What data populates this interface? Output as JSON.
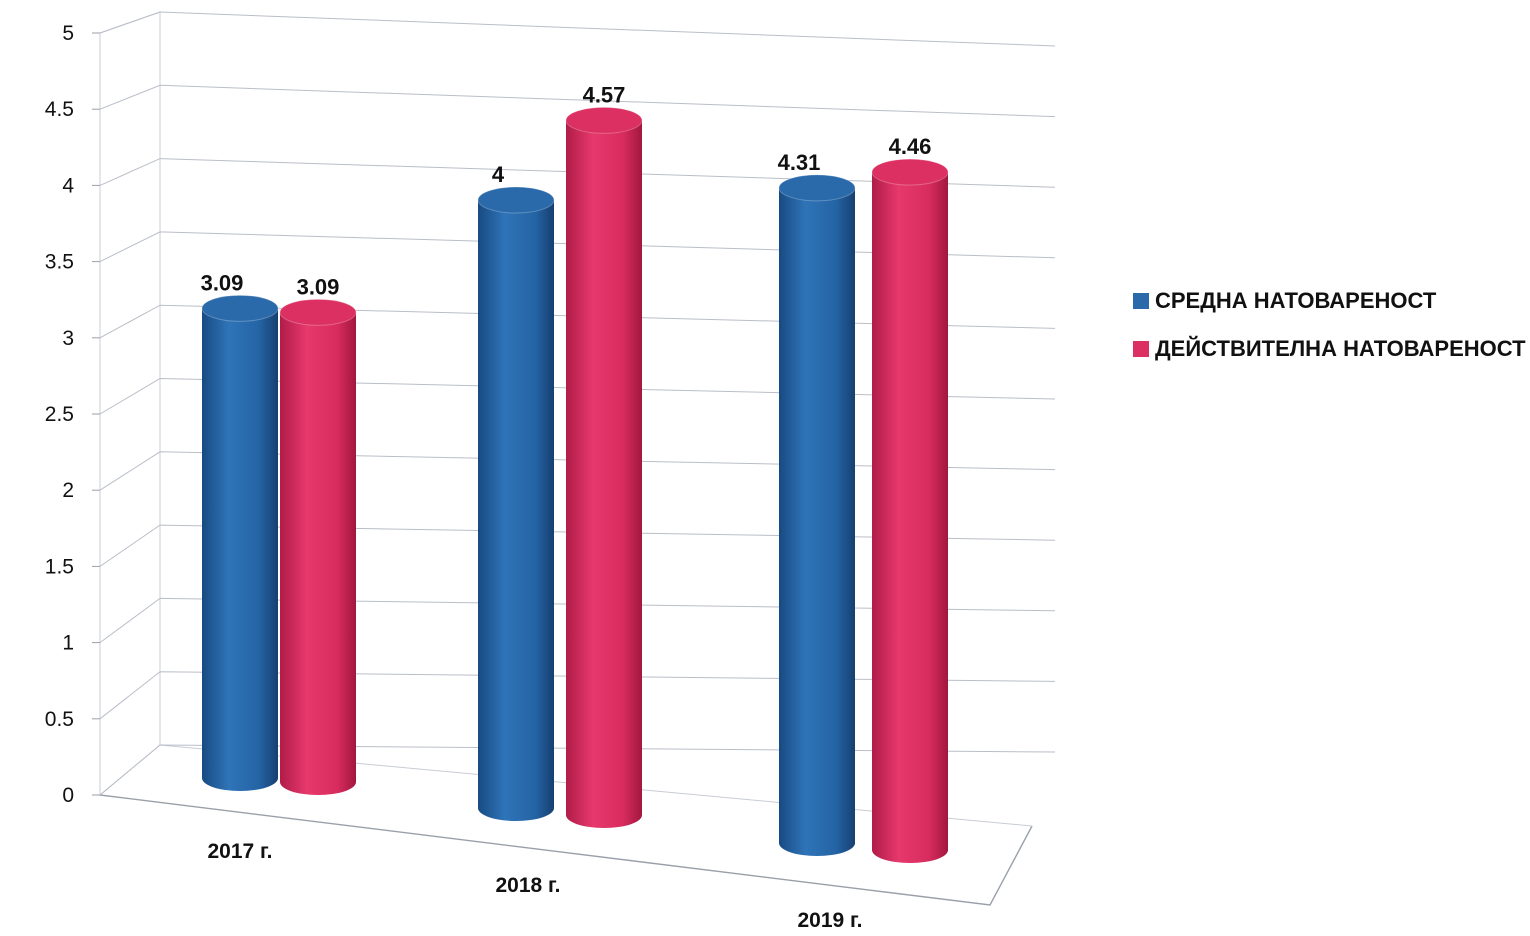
{
  "chart_data": {
    "type": "bar",
    "style": "3d-cylinder",
    "categories": [
      "2017 г.",
      "2018 г.",
      "2019 г."
    ],
    "series": [
      {
        "name": "СРЕДНА НАТОВАРЕНОСТ",
        "values": [
          3.09,
          4,
          4.31
        ],
        "labels": [
          "3.09",
          "4",
          "4.31"
        ],
        "color": "#2a6aab"
      },
      {
        "name": "ДЕЙСТВИТЕЛНА НАТОВАРЕНОСТ",
        "values": [
          3.09,
          4.57,
          4.46
        ],
        "labels": [
          "3.09",
          "4.57",
          "4.46"
        ],
        "color": "#dc2f62"
      }
    ],
    "ylim": [
      0,
      5
    ],
    "yticks": [
      "0",
      "0.5",
      "1",
      "1.5",
      "2",
      "2.5",
      "3",
      "3.5",
      "4",
      "4.5",
      "5"
    ],
    "grid": true,
    "legend": "right",
    "title": "",
    "xlabel": "",
    "ylabel": ""
  }
}
